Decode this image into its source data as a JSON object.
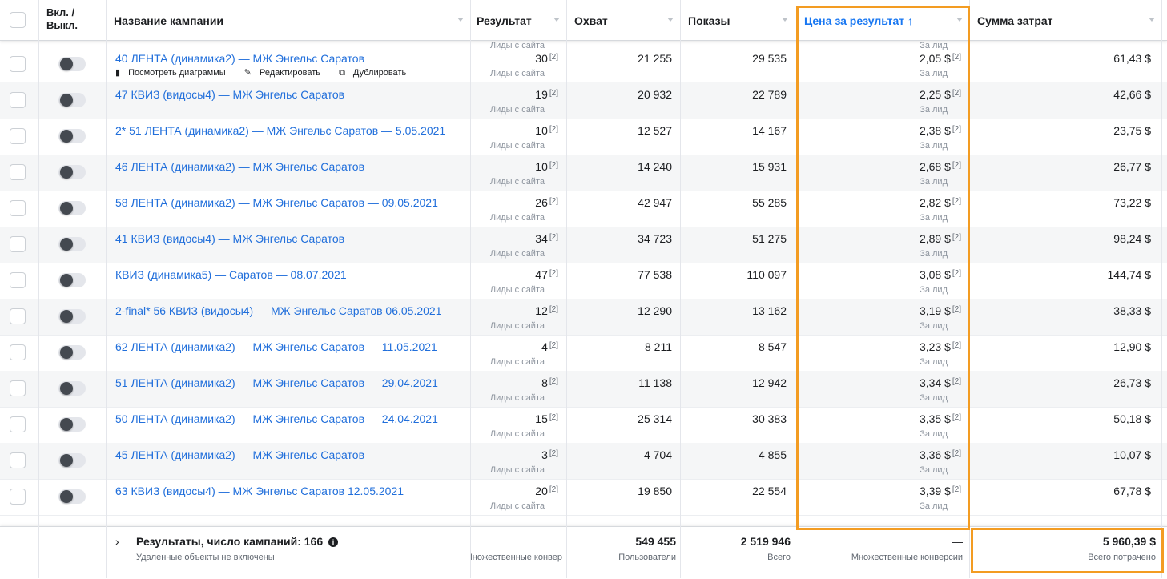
{
  "header": {
    "toggle_col": "Вкл. / Выкл.",
    "name_col": "Название кампании",
    "result_col": "Результат",
    "reach_col": "Охват",
    "impressions_col": "Показы",
    "cost_col": "Цена за результат",
    "cost_sort_arrow": "↑",
    "spend_col": "Сумма затрат"
  },
  "top_partial": {
    "result_sub": "Лиды с сайта",
    "cost_sub": "За лид"
  },
  "actions": {
    "charts": "Посмотреть диаграммы",
    "edit": "Редактировать",
    "duplicate": "Дублировать"
  },
  "footnote_mark": "[2]",
  "rows": [
    {
      "name": "40 ЛЕНТА (динамика2) — МЖ Энгельс Саратов",
      "result": "30",
      "result_sub": "Лиды с сайта",
      "reach": "21 255",
      "impressions": "29 535",
      "cost": "2,05 $",
      "cost_sub": "За лид",
      "spend": "61,43 $"
    },
    {
      "name": "47 КВИЗ (видосы4) — МЖ Энгельс Саратов",
      "result": "19",
      "result_sub": "Лиды с сайта",
      "reach": "20 932",
      "impressions": "22 789",
      "cost": "2,25 $",
      "cost_sub": "За лид",
      "spend": "42,66 $"
    },
    {
      "name": "2* 51 ЛЕНТА (динамика2) — МЖ Энгельс Саратов — 5.05.2021",
      "result": "10",
      "result_sub": "Лиды с сайта",
      "reach": "12 527",
      "impressions": "14 167",
      "cost": "2,38 $",
      "cost_sub": "За лид",
      "spend": "23,75 $"
    },
    {
      "name": "46 ЛЕНТА (динамика2) — МЖ Энгельс Саратов",
      "result": "10",
      "result_sub": "Лиды с сайта",
      "reach": "14 240",
      "impressions": "15 931",
      "cost": "2,68 $",
      "cost_sub": "За лид",
      "spend": "26,77 $"
    },
    {
      "name": "58 ЛЕНТА (динамика2) — МЖ Энгельс Саратов — 09.05.2021",
      "result": "26",
      "result_sub": "Лиды с сайта",
      "reach": "42 947",
      "impressions": "55 285",
      "cost": "2,82 $",
      "cost_sub": "За лид",
      "spend": "73,22 $"
    },
    {
      "name": "41 КВИЗ (видосы4) — МЖ Энгельс Саратов",
      "result": "34",
      "result_sub": "Лиды с сайта",
      "reach": "34 723",
      "impressions": "51 275",
      "cost": "2,89 $",
      "cost_sub": "За лид",
      "spend": "98,24 $"
    },
    {
      "name": "КВИЗ (динамика5) — Саратов — 08.07.2021",
      "result": "47",
      "result_sub": "Лиды с сайта",
      "reach": "77 538",
      "impressions": "110 097",
      "cost": "3,08 $",
      "cost_sub": "За лид",
      "spend": "144,74 $"
    },
    {
      "name": "2-final* 56 КВИЗ (видосы4) — МЖ Энгельс Саратов 06.05.2021",
      "result": "12",
      "result_sub": "Лиды с сайта",
      "reach": "12 290",
      "impressions": "13 162",
      "cost": "3,19 $",
      "cost_sub": "За лид",
      "spend": "38,33 $"
    },
    {
      "name": "62 ЛЕНТА (динамика2) — МЖ Энгельс Саратов — 11.05.2021",
      "result": "4",
      "result_sub": "Лиды с сайта",
      "reach": "8 211",
      "impressions": "8 547",
      "cost": "3,23 $",
      "cost_sub": "За лид",
      "spend": "12,90 $"
    },
    {
      "name": "51 ЛЕНТА (динамика2) — МЖ Энгельс Саратов — 29.04.2021",
      "result": "8",
      "result_sub": "Лиды с сайта",
      "reach": "11 138",
      "impressions": "12 942",
      "cost": "3,34 $",
      "cost_sub": "За лид",
      "spend": "26,73 $"
    },
    {
      "name": "50 ЛЕНТА (динамика2) — МЖ Энгельс Саратов — 24.04.2021",
      "result": "15",
      "result_sub": "Лиды с сайта",
      "reach": "25 314",
      "impressions": "30 383",
      "cost": "3,35 $",
      "cost_sub": "За лид",
      "spend": "50,18 $"
    },
    {
      "name": "45 ЛЕНТА (динамика2) — МЖ Энгельс Саратов",
      "result": "3",
      "result_sub": "Лиды с сайта",
      "reach": "4 704",
      "impressions": "4 855",
      "cost": "3,36 $",
      "cost_sub": "За лид",
      "spend": "10,07 $"
    },
    {
      "name": "63 КВИЗ (видосы4) — МЖ Энгельс Саратов 12.05.2021",
      "result": "20",
      "result_sub": "Лиды с сайта",
      "reach": "19 850",
      "impressions": "22 554",
      "cost": "3,39 $",
      "cost_sub": "За лид",
      "spend": "67,78 $"
    }
  ],
  "footer": {
    "title": "Результаты, число кампаний: 166",
    "subtitle": "Удаленные объекты не включены",
    "result_sub": "Множественные конвер",
    "reach": "549 455",
    "reach_sub": "Пользователи",
    "impressions": "2 519 946",
    "impressions_sub": "Всего",
    "cost": "—",
    "cost_sub": "Множественные конверсии",
    "spend": "5 960,39 $",
    "spend_sub": "Всего потрачено"
  },
  "colors": {
    "link": "#216fdb",
    "highlight": "#f39c22",
    "sorted_header": "#1877f2"
  }
}
